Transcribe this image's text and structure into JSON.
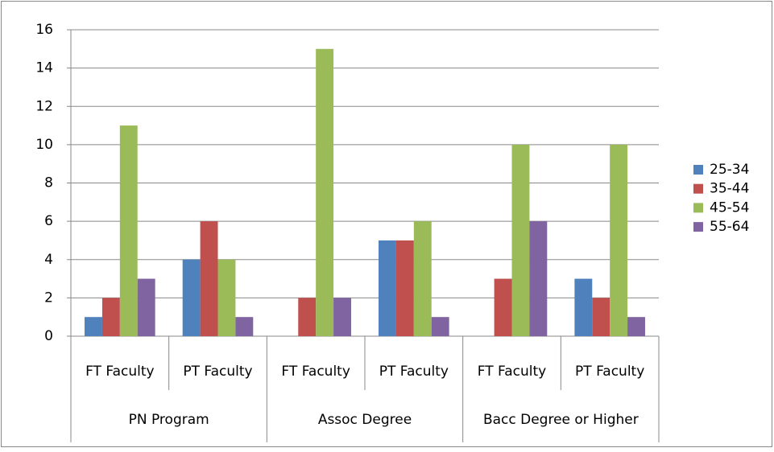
{
  "chart_data": {
    "type": "bar",
    "categories": [
      "FT Faculty",
      "PT Faculty",
      "FT Faculty",
      "PT Faculty",
      "FT Faculty",
      "PT Faculty"
    ],
    "category_groups": [
      "PN Program",
      "Assoc Degree",
      "Bacc Degree or Higher"
    ],
    "series": [
      {
        "name": "25-34",
        "color": "#4f81bd",
        "values": [
          1,
          4,
          0,
          5,
          0,
          3
        ]
      },
      {
        "name": "35-44",
        "color": "#c0504d",
        "values": [
          2,
          6,
          2,
          5,
          3,
          2
        ]
      },
      {
        "name": "45-54",
        "color": "#9bbb59",
        "values": [
          11,
          4,
          15,
          6,
          10,
          10
        ]
      },
      {
        "name": "55-64",
        "color": "#8064a2",
        "values": [
          3,
          1,
          2,
          1,
          6,
          1
        ]
      }
    ],
    "ylim": [
      0,
      16
    ],
    "yticks": [
      0,
      2,
      4,
      6,
      8,
      10,
      12,
      14,
      16
    ],
    "grid": true,
    "legend": "right"
  }
}
